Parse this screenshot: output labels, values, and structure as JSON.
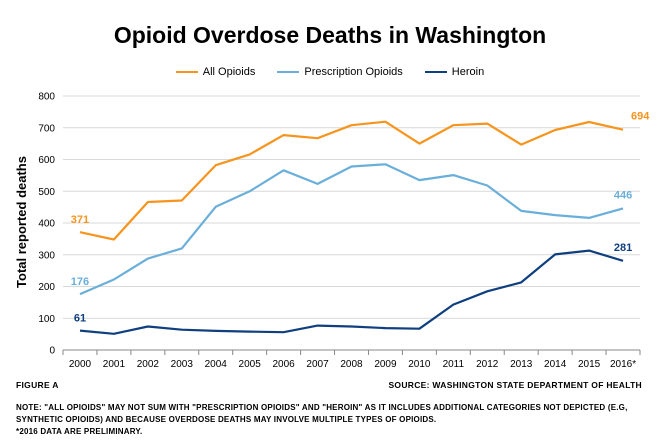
{
  "chart_data": {
    "type": "line",
    "title": "Opioid Overdose Deaths in Washington",
    "xlabel": "",
    "ylabel": "Total reported deaths",
    "ylim": [
      0,
      800
    ],
    "yticks": [
      0,
      100,
      200,
      300,
      400,
      500,
      600,
      700,
      800
    ],
    "categories": [
      "2000",
      "2001",
      "2002",
      "2003",
      "2004",
      "2005",
      "2006",
      "2007",
      "2008",
      "2009",
      "2010",
      "2011",
      "2012",
      "2013",
      "2014",
      "2015",
      "2016*"
    ],
    "series": [
      {
        "name": "All Opioids",
        "color": "#F7941D",
        "values": [
          371,
          348,
          466,
          471,
          582,
          616,
          677,
          667,
          708,
          719,
          650,
          708,
          713,
          647,
          693,
          718,
          694
        ],
        "start_label": "371",
        "end_label": "694"
      },
      {
        "name": "Prescription Opioids",
        "color": "#6AAFDA",
        "values": [
          176,
          222,
          288,
          320,
          451,
          500,
          566,
          523,
          578,
          585,
          535,
          551,
          518,
          438,
          425,
          416,
          446
        ],
        "start_label": "176",
        "end_label": "446"
      },
      {
        "name": "Heroin",
        "color": "#0F3F7F",
        "values": [
          61,
          51,
          74,
          64,
          60,
          58,
          56,
          77,
          74,
          69,
          67,
          143,
          185,
          213,
          301,
          313,
          281
        ],
        "start_label": "61",
        "end_label": "281"
      }
    ],
    "grid": true,
    "legend_position": "top"
  },
  "footer": {
    "figure_label": "Figure A",
    "source": "Source: Washington State Department of Health",
    "note": "Note: \"All Opioids\" may not sum with \"Prescription Opioids\" and \"Heroin\" as it includes additional categories not depicted (e.g, synthetic opioids) and because overdose deaths may involve multiple types of opioids.",
    "footnote": "*2016 data are preliminary."
  }
}
